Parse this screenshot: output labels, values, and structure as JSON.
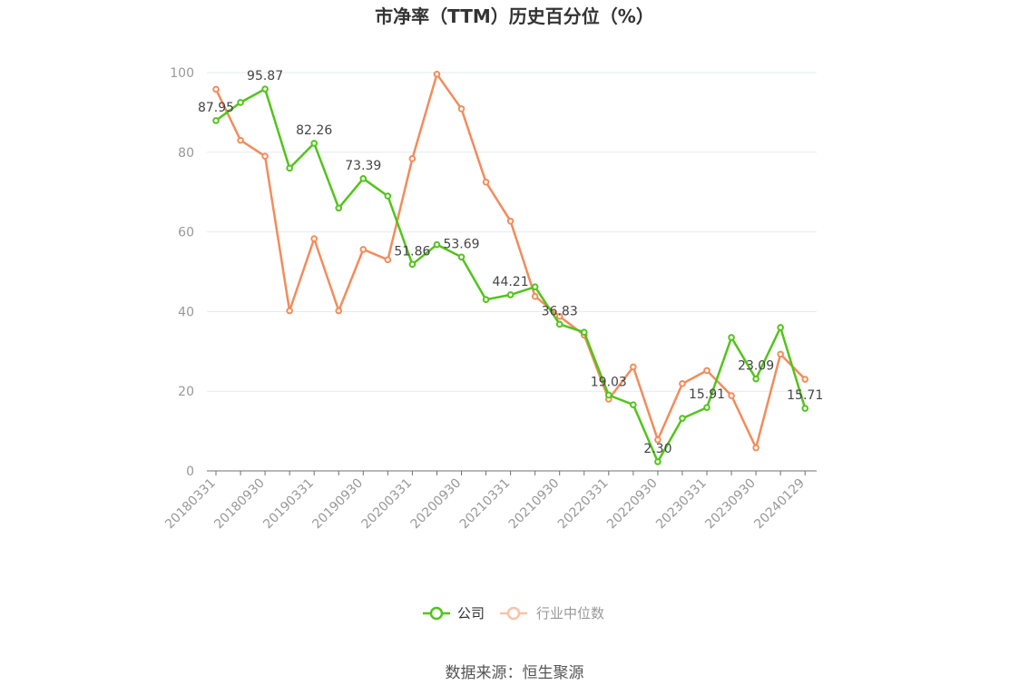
{
  "chart_data": {
    "type": "line",
    "title": "市净率（TTM）历史百分位（%）",
    "source": "数据来源：恒生聚源",
    "ylim": [
      0,
      100
    ],
    "yticks": [
      0,
      20,
      40,
      60,
      80,
      100
    ],
    "x_tick_labels": [
      "20180331",
      "20180930",
      "20190331",
      "20190930",
      "20200331",
      "20200930",
      "20210331",
      "20210930",
      "20220331",
      "20220930",
      "20230331",
      "20230930",
      "20240129"
    ],
    "x": [
      "20180331",
      "20180630",
      "20180930",
      "20181231",
      "20190331",
      "20190630",
      "20190930",
      "20191231",
      "20200331",
      "20200630",
      "20200930",
      "20201231",
      "20210331",
      "20210630",
      "20210930",
      "20211231",
      "20220331",
      "20220630",
      "20220930",
      "20221231",
      "20230331",
      "20230630",
      "20230930",
      "20231231",
      "20240129"
    ],
    "grid": true,
    "legend_position": "bottom",
    "series": [
      {
        "name": "公司",
        "color": "#52c41a",
        "values": [
          87.95,
          92.5,
          95.87,
          76.0,
          82.26,
          66.0,
          73.39,
          69.0,
          51.86,
          56.8,
          53.69,
          43.0,
          44.21,
          46.2,
          36.83,
          34.8,
          19.03,
          16.6,
          2.3,
          13.2,
          15.91,
          33.5,
          23.09,
          36.0,
          15.71
        ],
        "labels": [
          "87.95",
          null,
          "95.87",
          null,
          "82.26",
          null,
          "73.39",
          null,
          "51.86",
          null,
          "53.69",
          null,
          "44.21",
          null,
          "36.83",
          null,
          "19.03",
          null,
          "2.30",
          null,
          "15.91",
          null,
          "23.09",
          null,
          "15.71"
        ]
      },
      {
        "name": "行业中位数",
        "color": "#f28c5b",
        "values": [
          95.8,
          83.0,
          79.0,
          40.2,
          58.3,
          40.2,
          55.6,
          53.0,
          78.4,
          99.6,
          90.9,
          72.5,
          62.7,
          43.8,
          38.8,
          34.1,
          18.0,
          26.1,
          7.8,
          21.9,
          25.2,
          18.9,
          5.8,
          29.3,
          23.0
        ]
      }
    ]
  }
}
